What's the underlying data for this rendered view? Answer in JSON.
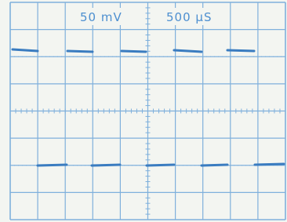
{
  "labels": {
    "volts_per_div": "50 mV",
    "time_per_div": "500 µS"
  }
}
